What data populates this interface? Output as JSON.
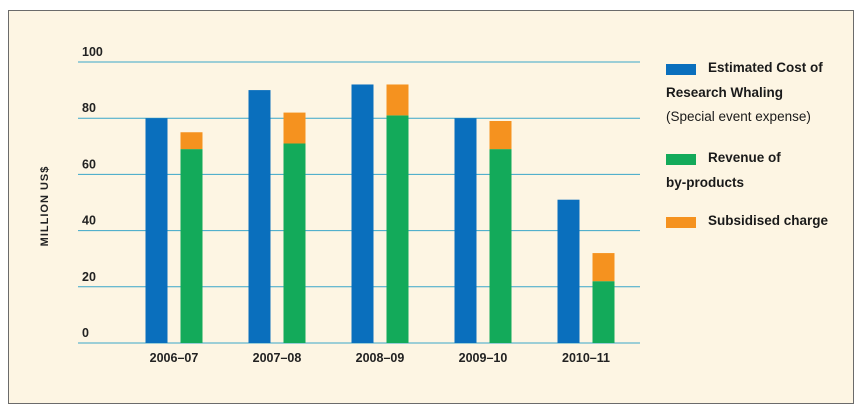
{
  "chart_data": {
    "type": "bar",
    "stacked_second_bar": true,
    "categories": [
      "2006–07",
      "2007–08",
      "2008–09",
      "2009–10",
      "2010–11"
    ],
    "series": [
      {
        "name": "Estimated Cost of Research Whaling (Special event expense)",
        "values": [
          80,
          90,
          92,
          80,
          51
        ],
        "color": "#0a6fbd"
      },
      {
        "name": "Revenue of by-products",
        "values": [
          69,
          71,
          81,
          69,
          22
        ],
        "color": "#13aa5a"
      },
      {
        "name": "Subsidised charge",
        "values": [
          6,
          11,
          11,
          10,
          10
        ],
        "color": "#f5921f"
      }
    ],
    "ylabel": "MILLION US$",
    "ylim": [
      0,
      100
    ],
    "yticks": [
      0,
      20,
      40,
      60,
      80,
      100
    ],
    "grid": true,
    "gridline_color": "#3aa6c9",
    "legend_position": "right"
  },
  "legend": {
    "items": [
      {
        "lines": [
          "Estimated Cost of",
          "Research Whaling",
          "(Special event expense)"
        ],
        "color": "#0a6fbd"
      },
      {
        "lines": [
          "Revenue of",
          "by-products"
        ],
        "color": "#13aa5a"
      },
      {
        "lines": [
          "Subsidised charge"
        ],
        "color": "#f5921f"
      }
    ]
  },
  "colors": {
    "panel_background": "#fdf5e3",
    "frame_border": "#6b6b6b"
  }
}
